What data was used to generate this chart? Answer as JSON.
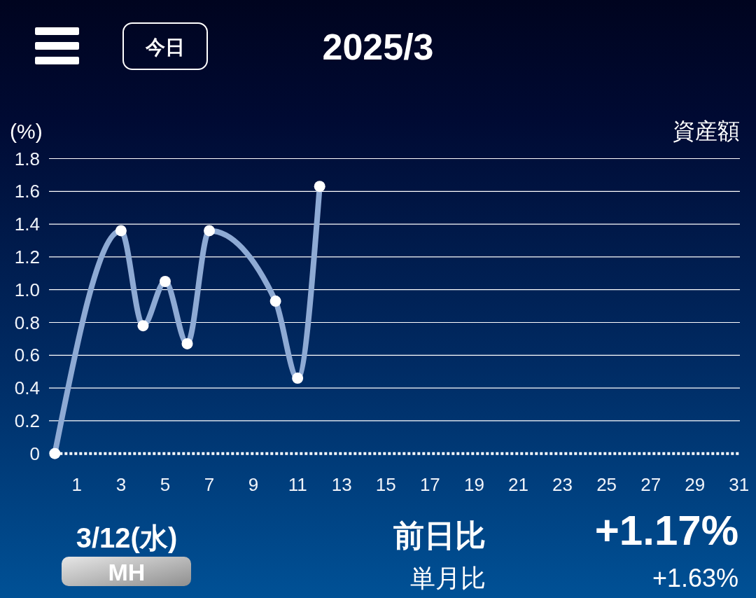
{
  "chart_data": {
    "type": "line",
    "title": "2025/3",
    "ylabel": "(%)",
    "x": [
      0,
      3,
      4,
      5,
      6,
      7,
      10,
      11,
      12
    ],
    "series": [
      {
        "color": "#8eaad4",
        "values": [
          0,
          1.36,
          0.78,
          1.05,
          0.67,
          1.36,
          0.93,
          0.46,
          1.63
        ]
      }
    ],
    "xlim": [
      0,
      31
    ],
    "xticks": [
      1,
      3,
      5,
      7,
      9,
      11,
      13,
      15,
      17,
      19,
      21,
      23,
      25,
      27,
      29,
      31
    ],
    "ylim": [
      0,
      1.8
    ],
    "yticks": [
      0,
      0.2,
      0.4,
      0.6,
      0.8,
      {
        "value": 1,
        "label": "1.0"
      },
      1.2,
      1.4,
      1.6,
      1.8
    ],
    "grid": "y",
    "marker": "circle",
    "line_style": "solid",
    "ref_lines": [
      {
        "axis": "y",
        "value": 0,
        "color": "#ffffff",
        "line_style": "dotted"
      }
    ],
    "annotations": [
      "資産額",
      "今日",
      "3/12(水)",
      "MH",
      "前日比",
      "+1.17%",
      "単月比",
      "+1.63%"
    ]
  }
}
